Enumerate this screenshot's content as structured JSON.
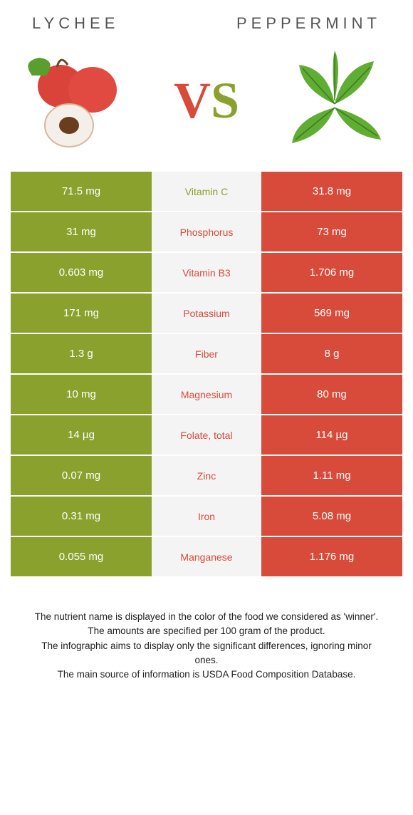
{
  "colors": {
    "left_food": "#8aa22d",
    "right_food": "#d84a3a",
    "mid_bg": "#f4f4f4",
    "title_text": "#555555"
  },
  "titles": {
    "left": "Lychee",
    "right": "Peppermint"
  },
  "vs": {
    "v": "V",
    "s": "S"
  },
  "rows": [
    {
      "nutrient": "Vitamin C",
      "left": "71.5 mg",
      "right": "31.8 mg",
      "winner": "left"
    },
    {
      "nutrient": "Phosphorus",
      "left": "31 mg",
      "right": "73 mg",
      "winner": "right"
    },
    {
      "nutrient": "Vitamin B3",
      "left": "0.603 mg",
      "right": "1.706 mg",
      "winner": "right"
    },
    {
      "nutrient": "Potassium",
      "left": "171 mg",
      "right": "569 mg",
      "winner": "right"
    },
    {
      "nutrient": "Fiber",
      "left": "1.3 g",
      "right": "8 g",
      "winner": "right"
    },
    {
      "nutrient": "Magnesium",
      "left": "10 mg",
      "right": "80 mg",
      "winner": "right"
    },
    {
      "nutrient": "Folate, total",
      "left": "14 µg",
      "right": "114 µg",
      "winner": "right"
    },
    {
      "nutrient": "Zinc",
      "left": "0.07 mg",
      "right": "1.11 mg",
      "winner": "right"
    },
    {
      "nutrient": "Iron",
      "left": "0.31 mg",
      "right": "5.08 mg",
      "winner": "right"
    },
    {
      "nutrient": "Manganese",
      "left": "0.055 mg",
      "right": "1.176 mg",
      "winner": "right"
    }
  ],
  "footer": {
    "l1": "The nutrient name is displayed in the color of the food we considered as 'winner'.",
    "l2": "The amounts are specified per 100 gram of the product.",
    "l3": "The infographic aims to display only the significant differences, ignoring minor ones.",
    "l4": "The main source of information is USDA Food Composition Database."
  }
}
